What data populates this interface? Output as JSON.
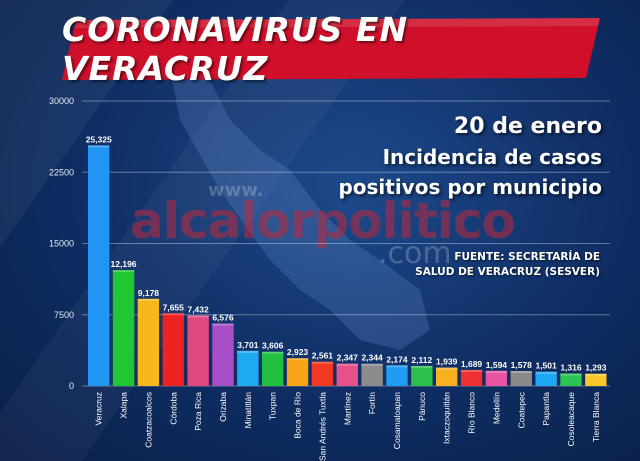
{
  "banner": {
    "title": "CORONAVIRUS EN VERACRUZ",
    "color": "#d0102a"
  },
  "info": {
    "date": "20 de enero",
    "line1": "Incidencia de casos",
    "line2": "positivos por municipio"
  },
  "source": {
    "line1": "FUENTE: SECRETARÍA DE",
    "line2": "SALUD DE VERACRUZ (SESVER)"
  },
  "watermark": {
    "www": "www.",
    "main": "alcalorpolitico",
    "com": ".com"
  },
  "chart_data": {
    "type": "bar",
    "title": "",
    "xlabel": "",
    "ylabel": "",
    "ylim": [
      0,
      30000
    ],
    "yticks": [
      0,
      7500,
      15000,
      22500,
      30000
    ],
    "grid": true,
    "categories": [
      "Veracruz",
      "Xalapa",
      "Coatzacoalcos",
      "Córdoba",
      "Poza Rica",
      "Orizaba",
      "Minatitlán",
      "Tuxpan",
      "Boca de Río",
      "San Andrés Tuxtla",
      "Martínez",
      "Fortín",
      "Cosamaloapan",
      "Pánuco",
      "Ixtaczoquitlán",
      "Río Blanco",
      "Medellín",
      "Coatepec",
      "Papantla",
      "Cosoleacaque",
      "Tierra Blanca"
    ],
    "values": [
      25325,
      12196,
      9178,
      7655,
      7432,
      6576,
      3701,
      3606,
      2923,
      2561,
      2347,
      2344,
      2174,
      2112,
      1939,
      1689,
      1594,
      1578,
      1501,
      1316,
      1293
    ],
    "value_labels": [
      "25,325",
      "12,196",
      "9,178",
      "7,655",
      "7,432",
      "6,576",
      "3,701",
      "3,606",
      "2,923",
      "2,561",
      "2,347",
      "2,344",
      "2,174",
      "2,112",
      "1,939",
      "1,689",
      "1,594",
      "1,578",
      "1,501",
      "1,316",
      "1,293"
    ],
    "colors": [
      "#2196f3",
      "#1fc832",
      "#f8b81c",
      "#ee2222",
      "#e24880",
      "#a84fc8",
      "#1eaaf0",
      "#22c040",
      "#f8a418",
      "#f03822",
      "#e8508c",
      "#8c8c8c",
      "#209cf0",
      "#2ac04a",
      "#f8b020",
      "#ee3030",
      "#e854a0",
      "#8a8a8a",
      "#1ea8f4",
      "#2cc452",
      "#f8c82a"
    ]
  }
}
